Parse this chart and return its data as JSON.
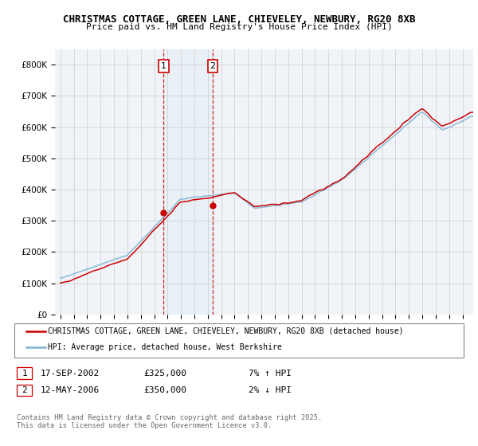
{
  "title1": "CHRISTMAS COTTAGE, GREEN LANE, CHIEVELEY, NEWBURY, RG20 8XB",
  "title2": "Price paid vs. HM Land Registry's House Price Index (HPI)",
  "sale1_date": "17-SEP-2002",
  "sale1_price": 325000,
  "sale1_hpi_pct": "7% ↑ HPI",
  "sale2_date": "12-MAY-2006",
  "sale2_price": 350000,
  "sale2_hpi_pct": "2% ↓ HPI",
  "legend_line1": "CHRISTMAS COTTAGE, GREEN LANE, CHIEVELEY, NEWBURY, RG20 8XB (detached house)",
  "legend_line2": "HPI: Average price, detached house, West Berkshire",
  "footer": "Contains HM Land Registry data © Crown copyright and database right 2025.\nThis data is licensed under the Open Government Licence v3.0.",
  "sale1_year": 2002.71,
  "sale2_year": 2006.36,
  "sale1_color": "#cc0000",
  "sale2_color": "#cc0000",
  "hpi_color": "#7fb3d3",
  "property_color": "#cc0000",
  "shade_color": "#d6e6f2",
  "ylim_min": 0,
  "ylim_max": 850000
}
